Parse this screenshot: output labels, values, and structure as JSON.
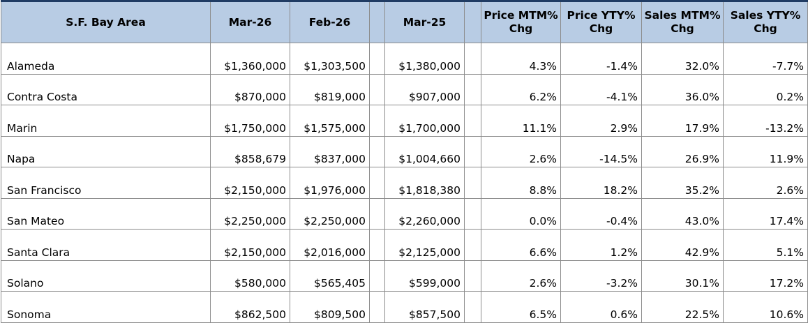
{
  "table": {
    "headers": {
      "region": "S.F. Bay Area",
      "mar26": "Mar-26",
      "feb26": "Feb-26",
      "mar25": "Mar-25",
      "price_mtm": "Price MTM% Chg",
      "price_yty": "Price YTY% Chg",
      "sales_mtm": "Sales MTM% Chg",
      "sales_yty": "Sales YTY% Chg"
    },
    "rows": [
      {
        "region": "Alameda",
        "mar26": "$1,360,000",
        "feb26": "$1,303,500",
        "mar25": "$1,380,000",
        "price_mtm": "4.3%",
        "price_yty": "-1.4%",
        "sales_mtm": "32.0%",
        "sales_yty": "-7.7%"
      },
      {
        "region": "Contra Costa",
        "mar26": "$870,000",
        "feb26": "$819,000",
        "mar25": "$907,000",
        "price_mtm": "6.2%",
        "price_yty": "-4.1%",
        "sales_mtm": "36.0%",
        "sales_yty": "0.2%"
      },
      {
        "region": "Marin",
        "mar26": "$1,750,000",
        "feb26": "$1,575,000",
        "mar25": "$1,700,000",
        "price_mtm": "11.1%",
        "price_yty": "2.9%",
        "sales_mtm": "17.9%",
        "sales_yty": "-13.2%"
      },
      {
        "region": "Napa",
        "mar26": "$858,679",
        "feb26": "$837,000",
        "mar25": "$1,004,660",
        "price_mtm": "2.6%",
        "price_yty": "-14.5%",
        "sales_mtm": "26.9%",
        "sales_yty": "11.9%"
      },
      {
        "region": "San Francisco",
        "mar26": "$2,150,000",
        "feb26": "$1,976,000",
        "mar25": "$1,818,380",
        "price_mtm": "8.8%",
        "price_yty": "18.2%",
        "sales_mtm": "35.2%",
        "sales_yty": "2.6%"
      },
      {
        "region": "San Mateo",
        "mar26": "$2,250,000",
        "feb26": "$2,250,000",
        "mar25": "$2,260,000",
        "price_mtm": "0.0%",
        "price_yty": "-0.4%",
        "sales_mtm": "43.0%",
        "sales_yty": "17.4%"
      },
      {
        "region": "Santa Clara",
        "mar26": "$2,150,000",
        "feb26": "$2,016,000",
        "mar25": "$2,125,000",
        "price_mtm": "6.6%",
        "price_yty": "1.2%",
        "sales_mtm": "42.9%",
        "sales_yty": "5.1%"
      },
      {
        "region": "Solano",
        "mar26": "$580,000",
        "feb26": "$565,405",
        "mar25": "$599,000",
        "price_mtm": "2.6%",
        "price_yty": "-3.2%",
        "sales_mtm": "30.1%",
        "sales_yty": "17.2%"
      },
      {
        "region": "Sonoma",
        "mar26": "$862,500",
        "feb26": "$809,500",
        "mar25": "$857,500",
        "price_mtm": "6.5%",
        "price_yty": "0.6%",
        "sales_mtm": "22.5%",
        "sales_yty": "10.6%"
      }
    ]
  }
}
